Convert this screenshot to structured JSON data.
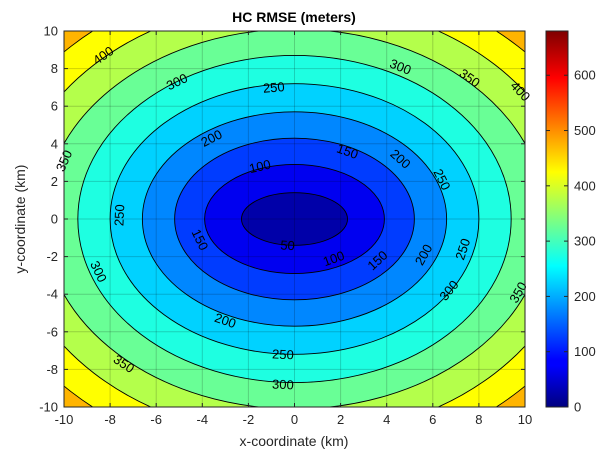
{
  "chart_data": {
    "type": "heatmap",
    "subtype": "filled-contour",
    "title": "HC RMSE (meters)",
    "xlabel": "x-coordinate (km)",
    "ylabel": "y-coordinate (km)",
    "xlim": [
      -10,
      10
    ],
    "ylim": [
      -10,
      10
    ],
    "x_ticks": [
      "-10",
      "-8",
      "-6",
      "-4",
      "-2",
      "0",
      "2",
      "4",
      "6",
      "8",
      "10"
    ],
    "y_ticks": [
      "10",
      "8",
      "6",
      "4",
      "2",
      "0",
      "-2",
      "-4",
      "-6",
      "-8",
      "-10"
    ],
    "grid": true,
    "center": [
      0,
      0
    ],
    "levels": [
      50,
      100,
      150,
      200,
      250,
      300,
      350,
      400,
      450
    ],
    "contour_radii_x_km": [
      2.3,
      3.9,
      5.2,
      6.6,
      8.0,
      9.4,
      10.9,
      12.3,
      13.7
    ],
    "contour_radii_y_km": [
      1.4,
      2.9,
      4.3,
      5.7,
      7.2,
      8.7,
      10.1,
      11.6,
      13.0
    ],
    "contour_labels": [
      {
        "text": "50",
        "x": -0.3,
        "y": -1.4
      },
      {
        "text": "100",
        "x": -1.5,
        "y": 2.8
      },
      {
        "text": "100",
        "x": 1.7,
        "y": -2.1
      },
      {
        "text": "150",
        "x": 2.3,
        "y": 3.6
      },
      {
        "text": "150",
        "x": -4.1,
        "y": -1.1
      },
      {
        "text": "150",
        "x": 3.6,
        "y": -2.2
      },
      {
        "text": "200",
        "x": -3.6,
        "y": 4.3
      },
      {
        "text": "200",
        "x": 4.6,
        "y": 3.2
      },
      {
        "text": "200",
        "x": 5.6,
        "y": -1.9
      },
      {
        "text": "200",
        "x": -3.0,
        "y": -5.4
      },
      {
        "text": "250",
        "x": -0.9,
        "y": 7.0
      },
      {
        "text": "250",
        "x": 6.4,
        "y": 2.1
      },
      {
        "text": "250",
        "x": -7.6,
        "y": 0.2
      },
      {
        "text": "250",
        "x": 7.3,
        "y": -1.6
      },
      {
        "text": "250",
        "x": -0.5,
        "y": -7.2
      },
      {
        "text": "300",
        "x": -5.1,
        "y": 7.3
      },
      {
        "text": "300",
        "x": 4.6,
        "y": 8.1
      },
      {
        "text": "300",
        "x": -8.5,
        "y": -2.8
      },
      {
        "text": "300",
        "x": 6.7,
        "y": -3.8
      },
      {
        "text": "300",
        "x": -0.5,
        "y": -8.8
      },
      {
        "text": "350",
        "x": 7.6,
        "y": 7.5
      },
      {
        "text": "350",
        "x": -10.0,
        "y": 3.1
      },
      {
        "text": "350",
        "x": 9.7,
        "y": -3.9
      },
      {
        "text": "350",
        "x": -7.4,
        "y": -7.7
      },
      {
        "text": "400",
        "x": -8.3,
        "y": 8.7
      },
      {
        "text": "400",
        "x": 9.8,
        "y": 6.8
      }
    ],
    "colorbar": {
      "colormap": "jet",
      "range": [
        0,
        680
      ],
      "ticks": [
        "0",
        "100",
        "200",
        "300",
        "400",
        "500",
        "600"
      ]
    }
  }
}
